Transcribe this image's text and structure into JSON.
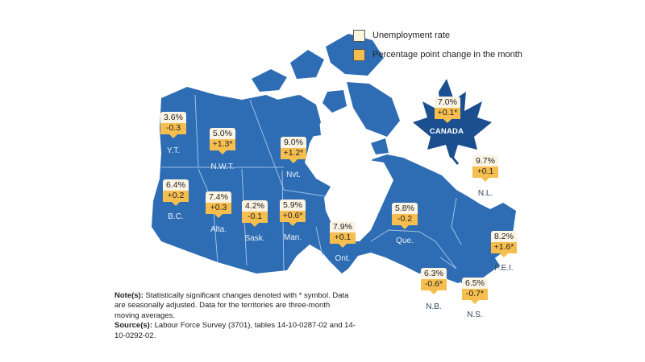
{
  "legend": {
    "rate_label": "Unemployment rate",
    "change_label": "Percentage point change in the month"
  },
  "colors": {
    "land": "#2e6db4",
    "land_dark": "#1f4f8f",
    "rate_box": "#fbf3e3",
    "change_box": "#f6be4f"
  },
  "national": {
    "name": "CANADA",
    "rate": "7.0%",
    "change": "+0.1*"
  },
  "regions": [
    {
      "name": "Y.T.",
      "rate": "3.6%",
      "change": "-0.3"
    },
    {
      "name": "N.W.T.",
      "rate": "5.0%",
      "change": "+1.3*"
    },
    {
      "name": "Nvt.",
      "rate": "9.0%",
      "change": "+1.2*"
    },
    {
      "name": "B.C.",
      "rate": "6.4%",
      "change": "+0.2"
    },
    {
      "name": "Alta.",
      "rate": "7.4%",
      "change": "+0.3"
    },
    {
      "name": "Sask.",
      "rate": "4.2%",
      "change": "-0.1"
    },
    {
      "name": "Man.",
      "rate": "5.9%",
      "change": "+0.6*"
    },
    {
      "name": "Ont.",
      "rate": "7.9%",
      "change": "+0.1"
    },
    {
      "name": "Que.",
      "rate": "5.8%",
      "change": "-0.2"
    },
    {
      "name": "N.L.",
      "rate": "9.7%",
      "change": "+0.1"
    },
    {
      "name": "P.E.I.",
      "rate": "8.2%",
      "change": "+1.6*"
    },
    {
      "name": "N.B.",
      "rate": "6.3%",
      "change": "-0.6*"
    },
    {
      "name": "N.S.",
      "rate": "6.5%",
      "change": "-0.7*"
    }
  ],
  "notes": {
    "note_label": "Note(s):",
    "note_text": "Statistically significant changes denoted with * symbol. Data are seasonally adjusted. Data for the territories are three-month moving averages.",
    "source_label": "Source(s):",
    "source_text": "Labour Force Survey (3701), tables 14-10-0287-02 and 14-10-0292-02."
  }
}
